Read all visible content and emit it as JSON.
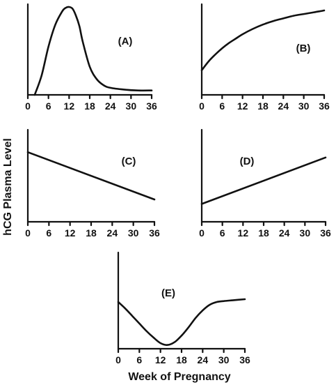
{
  "ylabel": "hCG Plasma Level",
  "xlabel": "Week of Pregnancy",
  "chart_data": [
    {
      "type": "line",
      "label": "(A)",
      "x_ticks": [
        0,
        6,
        12,
        18,
        24,
        30,
        36
      ],
      "xlim": [
        0,
        36
      ],
      "ylim": [
        0,
        100
      ],
      "series": [
        {
          "x": [
            2,
            4,
            6,
            8,
            10,
            11,
            12,
            13,
            14,
            15,
            16,
            18,
            20,
            22,
            24,
            28,
            32,
            36
          ],
          "y": [
            0,
            22,
            55,
            80,
            95,
            99,
            100,
            98,
            90,
            78,
            60,
            32,
            18,
            11,
            8,
            6,
            5,
            5
          ]
        }
      ]
    },
    {
      "type": "line",
      "label": "(B)",
      "x_ticks": [
        0,
        6,
        12,
        18,
        24,
        30,
        36
      ],
      "xlim": [
        0,
        36
      ],
      "ylim": [
        0,
        100
      ],
      "series": [
        {
          "x": [
            0,
            2,
            4,
            6,
            8,
            10,
            12,
            15,
            18,
            21,
            24,
            27,
            30,
            33,
            36
          ],
          "y": [
            28,
            38,
            46,
            53,
            59,
            64,
            69,
            75,
            80,
            84,
            87,
            90,
            92,
            94,
            96
          ]
        }
      ]
    },
    {
      "type": "line",
      "label": "(C)",
      "x_ticks": [
        0,
        6,
        12,
        18,
        24,
        30,
        36
      ],
      "xlim": [
        0,
        36
      ],
      "ylim": [
        0,
        100
      ],
      "series": [
        {
          "x": [
            0,
            36
          ],
          "y": [
            78,
            25
          ]
        }
      ]
    },
    {
      "type": "line",
      "label": "(D)",
      "x_ticks": [
        0,
        6,
        12,
        18,
        24,
        30,
        36
      ],
      "xlim": [
        0,
        36
      ],
      "ylim": [
        0,
        100
      ],
      "series": [
        {
          "x": [
            0,
            36
          ],
          "y": [
            20,
            72
          ]
        }
      ]
    },
    {
      "type": "line",
      "label": "(E)",
      "x_ticks": [
        0,
        6,
        12,
        18,
        24,
        30,
        36
      ],
      "xlim": [
        0,
        36
      ],
      "ylim": [
        0,
        100
      ],
      "series": [
        {
          "x": [
            0,
            2,
            4,
            6,
            8,
            10,
            12,
            14,
            16,
            18,
            20,
            22,
            24,
            26,
            28,
            30,
            33,
            36
          ],
          "y": [
            50,
            43,
            35,
            27,
            19,
            12,
            6,
            4,
            7,
            14,
            23,
            33,
            41,
            47,
            50,
            51,
            52,
            53
          ]
        }
      ]
    }
  ]
}
